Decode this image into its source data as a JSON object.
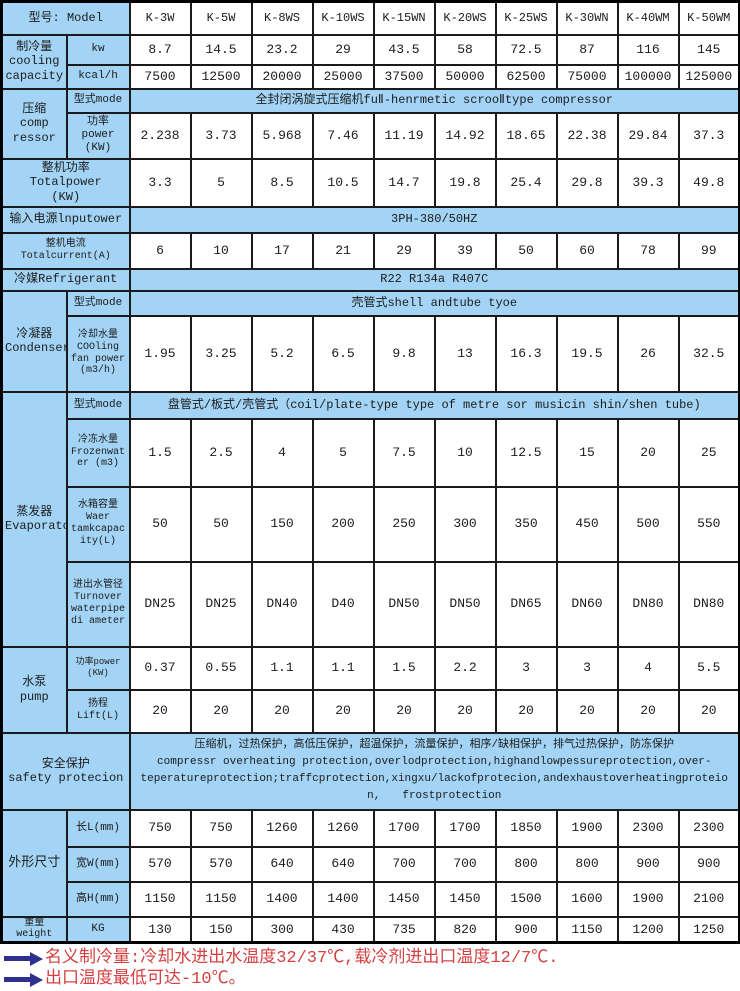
{
  "colors": {
    "cell_blue": "#a3d4f5",
    "border_black": "#1a1a1a",
    "note_red": "#d54040",
    "arrow_navy": "#2e2f8f"
  },
  "header": {
    "model_label": "型号: Model",
    "models": [
      "K-3W",
      "K-5W",
      "K-8WS",
      "K-10WS",
      "K-15WN",
      "K-20WS",
      "K-25WS",
      "K-30WN",
      "K-40WM",
      "K-50WM"
    ]
  },
  "cooling": {
    "group": "制冷量\ncooling\ncapacity",
    "kw_label": "kw",
    "kw": [
      "8.7",
      "14.5",
      "23.2",
      "29",
      "43.5",
      "58",
      "72.5",
      "87",
      "116",
      "145"
    ],
    "kcal_label": "kcal/h",
    "kcal": [
      "7500",
      "12500",
      "20000",
      "25000",
      "37500",
      "50000",
      "62500",
      "75000",
      "100000",
      "125000"
    ]
  },
  "compressor": {
    "group": "压缩\ncomp\nressor",
    "mode_label": "型式mode",
    "mode": "全封闭涡旋式压缩机fuⅡ-henrmetic scrooⅡtype compressor",
    "power_label": "功率\npower\n(KW)",
    "power": [
      "2.238",
      "3.73",
      "5.968",
      "7.46",
      "11.19",
      "14.92",
      "18.65",
      "22.38",
      "29.84",
      "37.3"
    ]
  },
  "total_power": {
    "label": "整机功率\nTotalpower\n(KW)",
    "values": [
      "3.3",
      "5",
      "8.5",
      "10.5",
      "14.7",
      "19.8",
      "25.4",
      "29.8",
      "39.3",
      "49.8"
    ]
  },
  "input_power": {
    "label": "输入电源lnputower",
    "value": "3PH-380/50HZ"
  },
  "total_current": {
    "label": "整机电流\nTotalcurrent(A)",
    "values": [
      "6",
      "10",
      "17",
      "21",
      "29",
      "39",
      "50",
      "60",
      "78",
      "99"
    ]
  },
  "refrigerant": {
    "label": "冷媒Refrigerant",
    "value": "R22 R134a R407C"
  },
  "condenser": {
    "group": "冷凝器\nCondenser",
    "mode_label": "型式mode",
    "mode": "壳管式shell andtube tyoe",
    "water_label": "冷却水量\nCOOling\nfan power\n(m3/h)",
    "water": [
      "1.95",
      "3.25",
      "5.2",
      "6.5",
      "9.8",
      "13",
      "16.3",
      "19.5",
      "26",
      "32.5"
    ]
  },
  "evaporator": {
    "group": "蒸发器\nEvaporator",
    "mode_label": "型式mode",
    "mode": "盘管式/板式/壳管式（coil/plate-type type of metre sor musicin shin/shen tube)",
    "frozen_label": "冷冻水量\nFrozenwat\ner (m3)",
    "frozen": [
      "1.5",
      "2.5",
      "4",
      "5",
      "7.5",
      "10",
      "12.5",
      "15",
      "20",
      "25"
    ],
    "tank_label": "水箱容量\nWaer\ntamkcapac\nity(L)",
    "tank": [
      "50",
      "50",
      "150",
      "200",
      "250",
      "300",
      "350",
      "450",
      "500",
      "550"
    ],
    "pipe_label": "进出水管径\nTurnover\nwaterpipe\ndi ameter",
    "pipe": [
      "DN25",
      "DN25",
      "DN40",
      "D40",
      "DN50",
      "DN50",
      "DN65",
      "DN60",
      "DN80",
      "DN80"
    ]
  },
  "pump": {
    "group": "水泵\npump",
    "power_label": "功率power\n(KW)",
    "power": [
      "0.37",
      "0.55",
      "1.1",
      "1.1",
      "1.5",
      "2.2",
      "3",
      "3",
      "4",
      "5.5"
    ],
    "lift_label": "扬程\nLift(L)",
    "lift": [
      "20",
      "20",
      "20",
      "20",
      "20",
      "20",
      "20",
      "20",
      "20",
      "20"
    ]
  },
  "safety": {
    "label": "安全保护\nsafety protecion",
    "value": "压缩机，过热保护，高低压保护，超温保护，流量保护，相序/缺相保护，排气过热保护，防冻保护\ncompressr overheating protection,overlodprotection,highandlowpessureprotection,over-\nteperatureprotection;traffcprotection,xingxu/lackofprotecion,andexhaustoverheatingproteio\nn,　　frostprotection"
  },
  "dimensions": {
    "group": "外形尺寸",
    "length_label": "长L(mm)",
    "length": [
      "750",
      "750",
      "1260",
      "1260",
      "1700",
      "1700",
      "1850",
      "1900",
      "2300",
      "2300"
    ],
    "width_label": "宽W(mm)",
    "width": [
      "570",
      "570",
      "640",
      "640",
      "700",
      "700",
      "800",
      "800",
      "900",
      "900"
    ],
    "height_label": "高H(mm)",
    "height": [
      "1150",
      "1150",
      "1400",
      "1400",
      "1450",
      "1450",
      "1500",
      "1600",
      "1900",
      "2100"
    ]
  },
  "weight": {
    "label": "重量\nweight",
    "unit": "KG",
    "values": [
      "130",
      "150",
      "300",
      "430",
      "735",
      "820",
      "900",
      "1150",
      "1200",
      "1250"
    ]
  },
  "notes": [
    "名义制冷量:冷却水进出水温度32/37℃,载冷剂进出口温度12/7℃.",
    "出口温度最低可达-10℃。"
  ]
}
